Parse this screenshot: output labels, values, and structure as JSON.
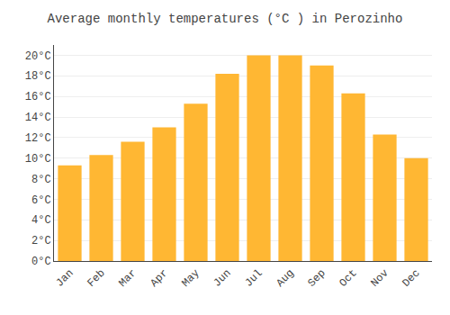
{
  "chart_data": {
    "type": "bar",
    "title": "Average monthly temperatures (°C ) in Perozinho",
    "categories": [
      "Jan",
      "Feb",
      "Mar",
      "Apr",
      "May",
      "Jun",
      "Jul",
      "Aug",
      "Sep",
      "Oct",
      "Nov",
      "Dec"
    ],
    "values": [
      9.3,
      10.3,
      11.6,
      13.0,
      15.3,
      18.2,
      20.0,
      20.0,
      19.0,
      16.3,
      12.3,
      10.0
    ],
    "color": "#FFB733",
    "ylim": [
      0,
      21
    ],
    "yticks": [
      {
        "value": 0,
        "label": "0°C"
      },
      {
        "value": 2,
        "label": "2°C"
      },
      {
        "value": 4,
        "label": "4°C"
      },
      {
        "value": 6,
        "label": "6°C"
      },
      {
        "value": 8,
        "label": "8°C"
      },
      {
        "value": 10,
        "label": "10°C"
      },
      {
        "value": 12,
        "label": "12°C"
      },
      {
        "value": 14,
        "label": "14°C"
      },
      {
        "value": 16,
        "label": "16°C"
      },
      {
        "value": 18,
        "label": "18°C"
      },
      {
        "value": 20,
        "label": "20°C"
      }
    ],
    "grid": true
  }
}
